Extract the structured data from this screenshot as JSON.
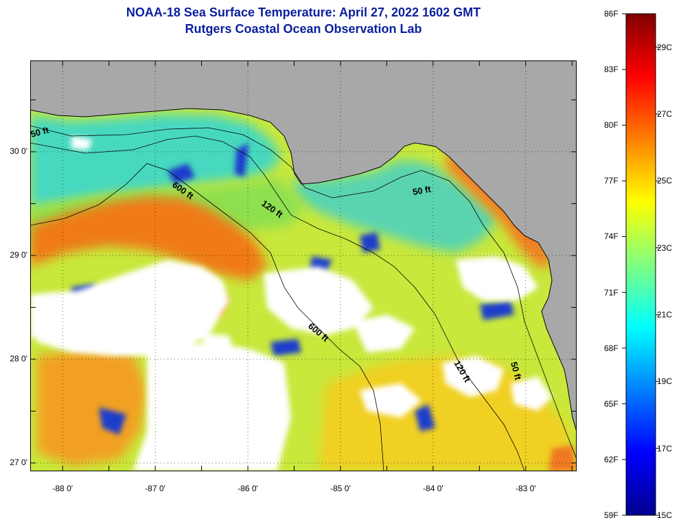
{
  "title": "NOAA-18 Sea Surface Temperature:  April 27, 2022 1602 GMT",
  "subtitle": "Rutgers Coastal Ocean Observation Lab",
  "map": {
    "lon_range": [
      -88.35,
      -82.45
    ],
    "lat_range": [
      26.92,
      30.88
    ],
    "lat_ticks": [
      "30 0'",
      "29 0'",
      "28 0'",
      "27 0'"
    ],
    "lat_values": [
      30,
      29,
      28,
      27
    ],
    "lon_ticks": [
      "-88 0'",
      "-87 0'",
      "-86 0'",
      "-85 0'",
      "-84 0'",
      "-83 0'"
    ],
    "lon_values": [
      -88,
      -87,
      -86,
      -85,
      -84,
      -83
    ],
    "contour_labels": [
      "50 ft",
      "600 ft",
      "120 ft",
      "50 ft",
      "600 ft",
      "120 ft",
      "50 ft"
    ],
    "colors": {
      "land": "#a8a8a8",
      "cloud": "#ffffff",
      "grid": "#000000"
    }
  },
  "colorbar": {
    "range_f": [
      59,
      86
    ],
    "range_c": [
      15,
      30
    ],
    "f_labels": [
      "86F",
      "83F",
      "80F",
      "77F",
      "74F",
      "71F",
      "68F",
      "65F",
      "62F",
      "59F"
    ],
    "f_values": [
      86,
      83,
      80,
      77,
      74,
      71,
      68,
      65,
      62,
      59
    ],
    "c_labels": [
      "29C",
      "27C",
      "25C",
      "23C",
      "21C",
      "19C",
      "17C",
      "15C"
    ],
    "c_values": [
      29,
      27,
      25,
      23,
      21,
      19,
      17,
      15
    ]
  }
}
